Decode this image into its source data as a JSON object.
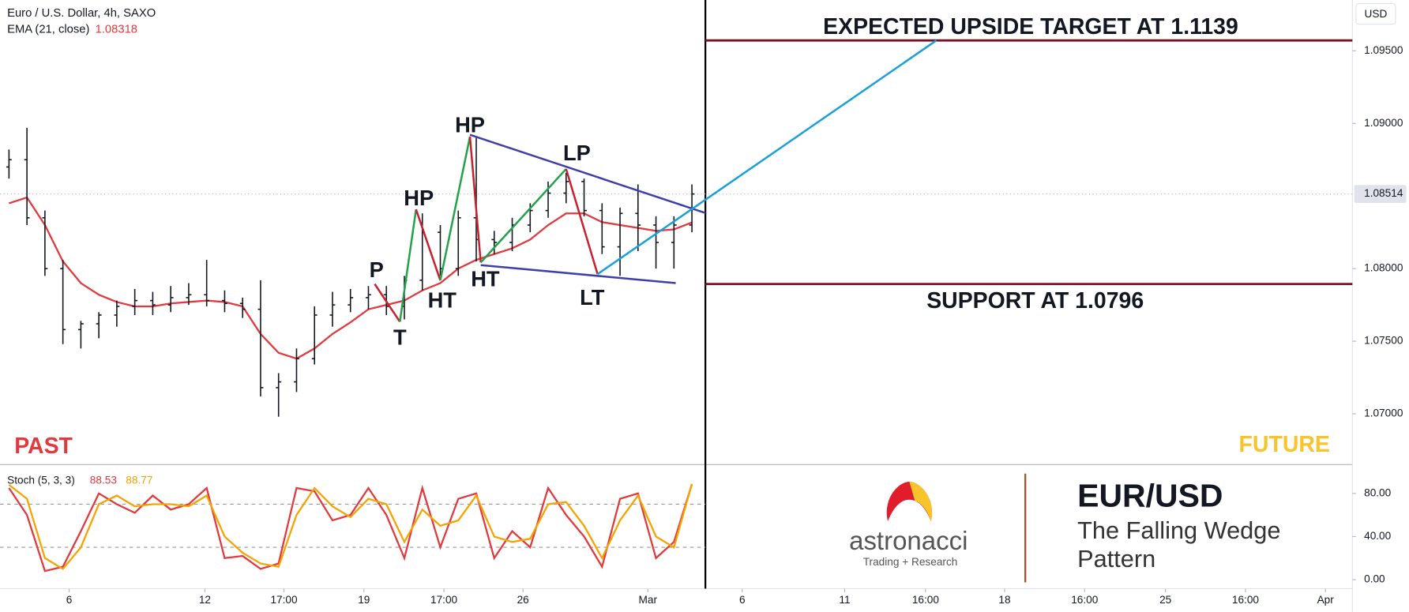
{
  "chart_data": [
    {
      "type": "ohlc",
      "title": "Euro / U.S. Dollar, 4h, SAXO",
      "currency": "USD",
      "color": "#131722",
      "x": [
        2,
        6,
        10,
        14,
        18,
        22,
        26,
        30,
        34,
        38,
        42,
        46,
        50,
        54,
        58,
        62,
        66,
        70,
        74,
        78,
        82,
        86,
        90,
        94,
        98,
        102,
        106,
        110,
        114,
        118,
        122,
        126,
        130,
        134,
        138,
        142,
        146,
        150,
        154
      ],
      "open": [
        1.087,
        1.0875,
        1.0835,
        1.08,
        1.0758,
        1.0762,
        1.0768,
        1.0774,
        1.0778,
        1.0775,
        1.078,
        1.0782,
        1.0778,
        1.0776,
        1.0772,
        1.0718,
        1.0722,
        1.0738,
        1.0768,
        1.0775,
        1.078,
        1.0782,
        1.0774,
        1.0792,
        1.0825,
        1.08,
        1.0835,
        1.082,
        1.0818,
        1.083,
        1.084,
        1.0852,
        1.086,
        1.084,
        1.0815,
        1.0838,
        1.083,
        1.0818,
        1.083
      ],
      "high": [
        1.0882,
        1.0897,
        1.084,
        1.0806,
        1.0764,
        1.077,
        1.0778,
        1.0786,
        1.0784,
        1.0788,
        1.079,
        1.0806,
        1.0785,
        1.078,
        1.0792,
        1.0728,
        1.0745,
        1.0774,
        1.0784,
        1.0786,
        1.0788,
        1.0788,
        1.0795,
        1.0838,
        1.083,
        1.084,
        1.089,
        1.0826,
        1.0835,
        1.0845,
        1.086,
        1.0866,
        1.0862,
        1.0845,
        1.0842,
        1.0858,
        1.0836,
        1.0836,
        1.0858
      ],
      "low": [
        1.0862,
        1.083,
        1.0795,
        1.0748,
        1.0745,
        1.0752,
        1.076,
        1.0768,
        1.0768,
        1.077,
        1.0775,
        1.0774,
        1.077,
        1.0766,
        1.0712,
        1.0698,
        1.0715,
        1.0734,
        1.076,
        1.077,
        1.0772,
        1.0768,
        1.0765,
        1.0785,
        1.0795,
        1.0795,
        1.0805,
        1.081,
        1.0812,
        1.0825,
        1.0835,
        1.0845,
        1.0836,
        1.081,
        1.0795,
        1.0812,
        1.08,
        1.08,
        1.0825
      ],
      "close": [
        1.0875,
        1.0835,
        1.08,
        1.0758,
        1.0762,
        1.0768,
        1.0774,
        1.0778,
        1.0775,
        1.078,
        1.0782,
        1.0778,
        1.0776,
        1.0772,
        1.0718,
        1.0722,
        1.0738,
        1.0768,
        1.0775,
        1.078,
        1.0782,
        1.0774,
        1.0792,
        1.0825,
        1.08,
        1.0835,
        1.082,
        1.0818,
        1.083,
        1.084,
        1.0852,
        1.086,
        1.084,
        1.0815,
        1.0838,
        1.083,
        1.0818,
        1.083,
        1.08514
      ],
      "overlays": [
        {
          "name": "EMA (21, close)",
          "color": "#e0393e",
          "values": [
            1.0845,
            1.0849,
            1.083,
            1.0805,
            1.079,
            1.0782,
            1.0777,
            1.0774,
            1.0774,
            1.0776,
            1.0777,
            1.0778,
            1.0777,
            1.0774,
            1.0755,
            1.0742,
            1.0738,
            1.0745,
            1.0755,
            1.0763,
            1.0772,
            1.0775,
            1.0778,
            1.0785,
            1.079,
            1.08,
            1.0806,
            1.081,
            1.0814,
            1.082,
            1.083,
            1.0838,
            1.0838,
            1.0832,
            1.083,
            1.0828,
            1.0826,
            1.0827,
            1.08318
          ]
        }
      ],
      "xlim": [
        0,
        301
      ],
      "xticks": [
        {
          "value": 15.4,
          "label": "6"
        },
        {
          "value": 45.6,
          "label": "12"
        },
        {
          "value": 63.2,
          "label": "17:00"
        },
        {
          "value": 81,
          "label": "19"
        },
        {
          "value": 98.8,
          "label": "17:00"
        },
        {
          "value": 116.4,
          "label": "26"
        },
        {
          "value": 144.2,
          "label": "Mar"
        },
        {
          "value": 165.2,
          "label": "6"
        },
        {
          "value": 188,
          "label": "11"
        },
        {
          "value": 206,
          "label": "16:00"
        },
        {
          "value": 223.6,
          "label": "18"
        },
        {
          "value": 241.4,
          "label": "16:00"
        },
        {
          "value": 259.4,
          "label": "25"
        },
        {
          "value": 277.2,
          "label": "16:00"
        },
        {
          "value": 295,
          "label": "Apr"
        }
      ],
      "ylim": [
        1.0665,
        1.0985
      ],
      "yticks": [
        {
          "value": 1.07,
          "label": "1.07000"
        },
        {
          "value": 1.075,
          "label": "1.07500"
        },
        {
          "value": 1.08,
          "label": "1.08000"
        },
        {
          "value": 1.09,
          "label": "1.09000"
        },
        {
          "value": 1.095,
          "label": "1.09500"
        }
      ],
      "grid": false,
      "annotations": {
        "pivots": [
          "P",
          "T",
          "HP",
          "HT",
          "HP",
          "HT",
          "LP",
          "LT"
        ],
        "target": "EXPECTED UPSIDE TARGET AT 1.1139",
        "support": "SUPPORT AT 1.0796",
        "past": "PAST",
        "future": "FUTURE"
      }
    },
    {
      "type": "line",
      "title": "Stoch (5, 3, 3)",
      "x": [
        2,
        6,
        10,
        14,
        18,
        22,
        26,
        30,
        34,
        38,
        42,
        46,
        50,
        54,
        58,
        62,
        66,
        70,
        74,
        78,
        82,
        86,
        90,
        94,
        98,
        102,
        106,
        110,
        114,
        118,
        122,
        126,
        130,
        134,
        138,
        142,
        146,
        150,
        154
      ],
      "series": [
        {
          "color": "#e0393e",
          "values": [
            85,
            60,
            8,
            12,
            45,
            80,
            70,
            62,
            78,
            65,
            70,
            85,
            20,
            22,
            10,
            15,
            85,
            82,
            55,
            60,
            85,
            60,
            20,
            85,
            30,
            75,
            80,
            20,
            45,
            30,
            85,
            60,
            40,
            12,
            75,
            80,
            20,
            35,
            88.53
          ]
        },
        {
          "color": "#f5a300",
          "values": [
            88,
            75,
            20,
            10,
            30,
            70,
            78,
            68,
            70,
            70,
            68,
            78,
            40,
            25,
            15,
            12,
            60,
            85,
            68,
            58,
            75,
            70,
            35,
            65,
            50,
            55,
            78,
            40,
            35,
            38,
            70,
            72,
            50,
            20,
            55,
            78,
            40,
            30,
            88.77
          ]
        }
      ],
      "ylim": [
        -8.3,
        106.7
      ],
      "yticks": [
        {
          "value": 0,
          "label": "0.00"
        },
        {
          "value": 40,
          "label": "40.00"
        },
        {
          "value": 80,
          "label": "80.00"
        }
      ],
      "bands": [
        70,
        30
      ]
    }
  ],
  "branding": {
    "logo": "astronacci",
    "tagline": "Trading + Research",
    "heading": "EUR/USD",
    "subheading_lines": [
      "The Falling Wedge",
      "Pattern"
    ]
  }
}
